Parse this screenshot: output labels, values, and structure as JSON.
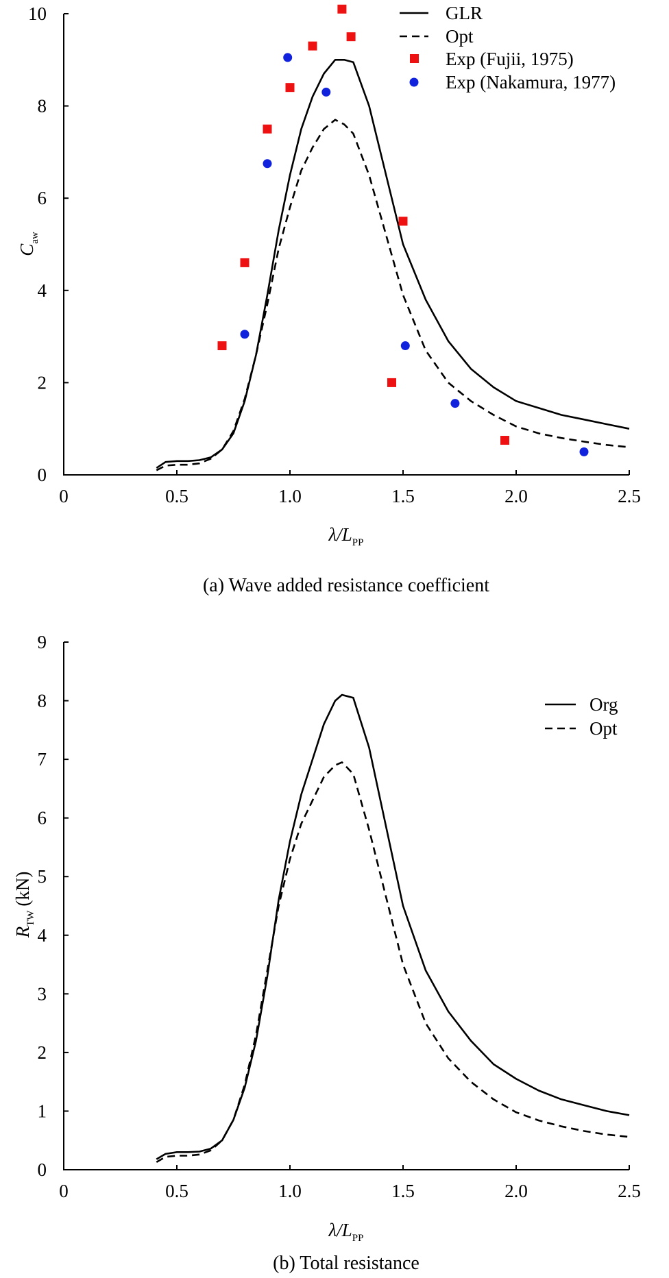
{
  "chart_data": [
    {
      "type": "line",
      "caption": "(a) Wave added resistance coefficient",
      "xlabel": "λ/L",
      "xlabel_sub": "PP",
      "ylabel": "C",
      "ylabel_sub": "aw",
      "xlim": [
        0,
        2.5
      ],
      "ylim": [
        0,
        10
      ],
      "xticks": [
        0,
        0.5,
        1.0,
        1.5,
        2.0,
        2.5
      ],
      "xtick_labels": [
        "0",
        "0.5",
        "1.0",
        "1.5",
        "2.0",
        "2.5"
      ],
      "yticks": [
        0,
        2,
        4,
        6,
        8,
        10
      ],
      "ytick_labels": [
        "0",
        "2",
        "4",
        "6",
        "8",
        "10"
      ],
      "legend_position": "top-right",
      "series": [
        {
          "name": "GLR",
          "kind": "line",
          "style": "solid",
          "color": "#000000",
          "x": [
            0.41,
            0.45,
            0.5,
            0.55,
            0.6,
            0.65,
            0.7,
            0.75,
            0.8,
            0.85,
            0.9,
            0.95,
            1.0,
            1.05,
            1.1,
            1.15,
            1.2,
            1.24,
            1.28,
            1.35,
            1.5,
            1.6,
            1.7,
            1.8,
            1.9,
            2.0,
            2.1,
            2.2,
            2.3,
            2.4,
            2.5
          ],
          "y": [
            0.15,
            0.28,
            0.3,
            0.3,
            0.32,
            0.38,
            0.55,
            0.9,
            1.6,
            2.6,
            3.9,
            5.3,
            6.5,
            7.5,
            8.2,
            8.7,
            9.0,
            9.0,
            8.95,
            8.0,
            5.0,
            3.8,
            2.9,
            2.3,
            1.9,
            1.6,
            1.45,
            1.3,
            1.2,
            1.1,
            1.0
          ]
        },
        {
          "name": "Opt",
          "kind": "line",
          "style": "dashed",
          "color": "#000000",
          "x": [
            0.41,
            0.45,
            0.5,
            0.55,
            0.6,
            0.65,
            0.7,
            0.75,
            0.8,
            0.85,
            0.9,
            0.95,
            1.0,
            1.05,
            1.1,
            1.15,
            1.2,
            1.24,
            1.28,
            1.35,
            1.5,
            1.6,
            1.7,
            1.8,
            1.9,
            2.0,
            2.1,
            2.2,
            2.3,
            2.4,
            2.5
          ],
          "y": [
            0.1,
            0.2,
            0.22,
            0.22,
            0.25,
            0.35,
            0.55,
            0.95,
            1.65,
            2.6,
            3.7,
            4.9,
            5.8,
            6.6,
            7.1,
            7.5,
            7.7,
            7.6,
            7.4,
            6.5,
            3.9,
            2.7,
            2.0,
            1.6,
            1.3,
            1.05,
            0.9,
            0.8,
            0.72,
            0.65,
            0.6
          ]
        },
        {
          "name": "Exp (Fujii, 1975)",
          "kind": "scatter",
          "marker": "square",
          "color": "#ee1111",
          "x": [
            0.7,
            0.8,
            0.9,
            1.0,
            1.1,
            1.23,
            1.27,
            1.45,
            1.5,
            1.95
          ],
          "y": [
            2.8,
            4.6,
            7.5,
            8.4,
            9.3,
            10.1,
            9.5,
            2.0,
            5.5,
            0.75
          ]
        },
        {
          "name": "Exp (Nakamura, 1977)",
          "kind": "scatter",
          "marker": "circle",
          "color": "#1122dd",
          "x": [
            0.8,
            0.9,
            0.99,
            1.16,
            1.51,
            1.73,
            2.3
          ],
          "y": [
            3.05,
            6.75,
            9.05,
            8.3,
            2.8,
            1.55,
            0.5
          ]
        }
      ]
    },
    {
      "type": "line",
      "caption": "(b) Total resistance",
      "xlabel": "λ/L",
      "xlabel_sub": "PP",
      "ylabel": "R",
      "ylabel_sub": "TW",
      "ylabel_unit": "(kN)",
      "xlim": [
        0,
        2.5
      ],
      "ylim": [
        0,
        9
      ],
      "xticks": [
        0,
        0.5,
        1.0,
        1.5,
        2.0,
        2.5
      ],
      "xtick_labels": [
        "0",
        "0.5",
        "1.0",
        "1.5",
        "2.0",
        "2.5"
      ],
      "yticks": [
        0,
        1,
        2,
        3,
        4,
        5,
        6,
        7,
        8,
        9
      ],
      "ytick_labels": [
        "0",
        "1",
        "2",
        "3",
        "4",
        "5",
        "6",
        "7",
        "8",
        "9"
      ],
      "legend_position": "top-right",
      "series": [
        {
          "name": "Org",
          "kind": "line",
          "style": "solid",
          "color": "#000000",
          "x": [
            0.41,
            0.45,
            0.5,
            0.55,
            0.6,
            0.65,
            0.7,
            0.75,
            0.8,
            0.85,
            0.9,
            0.95,
            1.0,
            1.05,
            1.1,
            1.15,
            1.2,
            1.23,
            1.28,
            1.35,
            1.5,
            1.6,
            1.7,
            1.8,
            1.9,
            2.0,
            2.1,
            2.2,
            2.3,
            2.4,
            2.5
          ],
          "y": [
            0.18,
            0.27,
            0.3,
            0.3,
            0.31,
            0.36,
            0.5,
            0.85,
            1.4,
            2.2,
            3.3,
            4.6,
            5.6,
            6.4,
            7.0,
            7.6,
            8.0,
            8.1,
            8.05,
            7.2,
            4.5,
            3.4,
            2.7,
            2.2,
            1.8,
            1.55,
            1.35,
            1.2,
            1.1,
            1.0,
            0.93
          ]
        },
        {
          "name": "Opt",
          "kind": "line",
          "style": "dashed",
          "color": "#000000",
          "x": [
            0.41,
            0.45,
            0.5,
            0.55,
            0.6,
            0.65,
            0.7,
            0.75,
            0.8,
            0.85,
            0.9,
            0.95,
            1.0,
            1.05,
            1.1,
            1.15,
            1.2,
            1.23,
            1.28,
            1.35,
            1.5,
            1.6,
            1.7,
            1.8,
            1.9,
            2.0,
            2.1,
            2.2,
            2.3,
            2.4,
            2.5
          ],
          "y": [
            0.13,
            0.22,
            0.24,
            0.24,
            0.26,
            0.33,
            0.5,
            0.85,
            1.45,
            2.3,
            3.4,
            4.5,
            5.3,
            5.9,
            6.3,
            6.7,
            6.9,
            6.95,
            6.75,
            5.8,
            3.5,
            2.5,
            1.9,
            1.5,
            1.2,
            0.98,
            0.84,
            0.74,
            0.66,
            0.6,
            0.56
          ]
        }
      ]
    }
  ]
}
